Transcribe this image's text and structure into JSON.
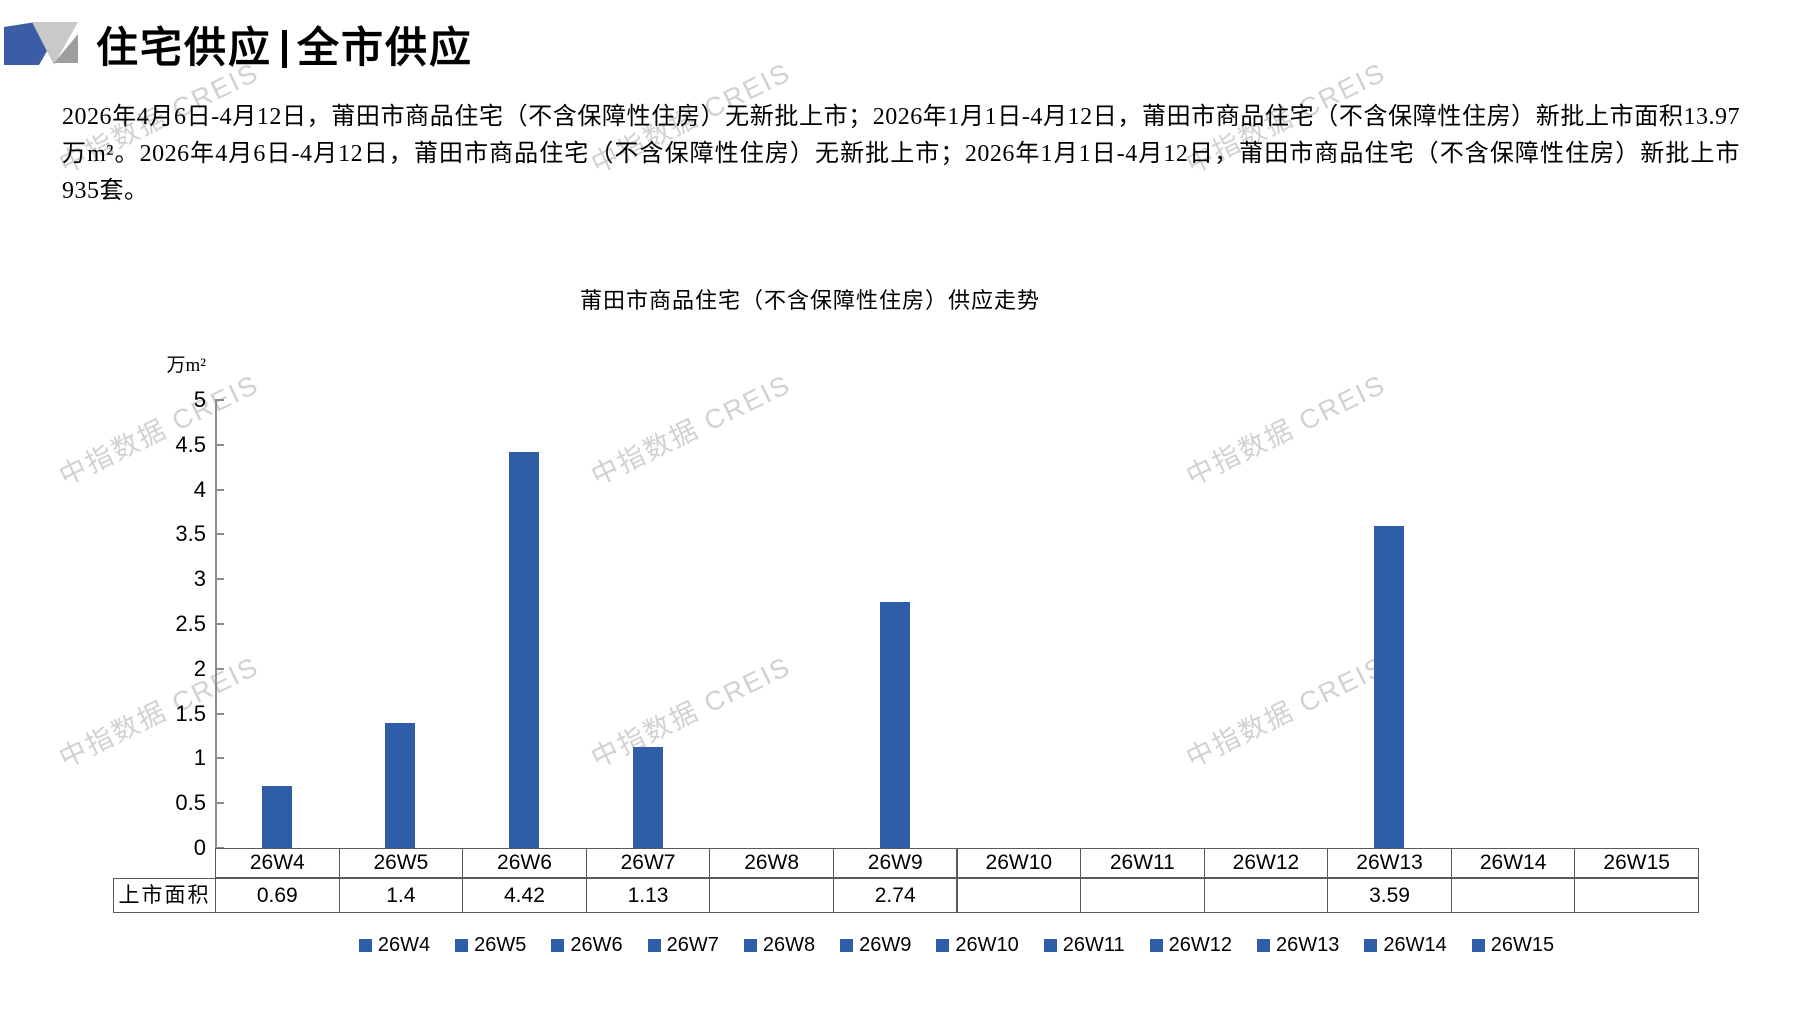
{
  "header": {
    "title_left": "住宅供应",
    "title_right": "全市供应"
  },
  "summary": {
    "text": "2026年4月6日-4月12日，莆田市商品住宅（不含保障性住房）无新批上市；2026年1月1日-4月12日，莆田市商品住宅（不含保障性住房）新批上市面积13.97万m²。2026年4月6日-4月12日，莆田市商品住宅（不含保障性住房）无新批上市；2026年1月1日-4月12日，莆田市商品住宅（不含保障性住房）新批上市935套。"
  },
  "watermark": {
    "text": "中指数据 CREIS"
  },
  "colors": {
    "bar_blue": "#2F5DA8",
    "logo_blue": "#3C5CA6",
    "logo_gray_light": "#C9C9C9",
    "logo_gray_dark": "#9E9E9E",
    "axis_gray": "#8c8c8c",
    "table_border": "#595959"
  },
  "chart_data": {
    "type": "bar",
    "title": "莆田市商品住宅（不含保障性住房）供应走势",
    "unit_label": "万m²",
    "xlabel": "",
    "ylabel": "万m²",
    "categories": [
      "26W4",
      "26W5",
      "26W6",
      "26W7",
      "26W8",
      "26W9",
      "26W10",
      "26W11",
      "26W12",
      "26W13",
      "26W14",
      "26W15"
    ],
    "series": [
      {
        "name": "上市面积",
        "values": [
          0.69,
          1.4,
          4.42,
          1.13,
          null,
          2.74,
          null,
          null,
          null,
          3.59,
          null,
          null
        ]
      }
    ],
    "ylim": [
      0,
      5
    ],
    "y_tick_step": 0.5,
    "grid": false,
    "legend_position": "bottom",
    "data_table_shown": true,
    "table_row_header": "上市面积"
  }
}
